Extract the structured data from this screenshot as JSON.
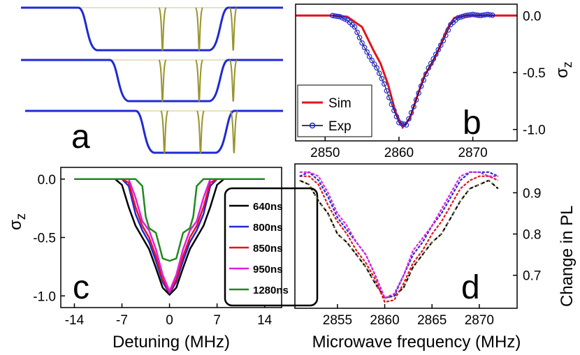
{
  "chart_data": [
    {
      "panel": "a",
      "type": "line",
      "letter": "a",
      "traces": [
        {
          "id": "a1",
          "line_color": "#1f2ad6",
          "pulse_color": "#9a9430",
          "dip_start": 22,
          "dip_end": 78,
          "pulses": [
            54,
            68,
            81
          ]
        },
        {
          "id": "a2",
          "line_color": "#1f2ad6",
          "pulse_color": "#9a9430",
          "dip_start": 34,
          "dip_end": 78,
          "pulses": [
            54,
            68,
            81
          ]
        },
        {
          "id": "a3",
          "line_color": "#1f2ad6",
          "pulse_color": "#9a9430",
          "dip_start": 43,
          "dip_end": 80,
          "pulses": [
            54,
            68,
            81
          ]
        }
      ]
    },
    {
      "panel": "b",
      "type": "line",
      "letter": "b",
      "ylabel": "σ",
      "ylabel_sub": "z",
      "xlim": [
        2846,
        2876
      ],
      "ylim": [
        -1.1,
        0.1
      ],
      "xticks": [
        "2850",
        "2860",
        "2870"
      ],
      "yticks": [
        "0.0",
        "-0.5",
        "-1.0"
      ],
      "series": [
        {
          "name": "Sim",
          "color": "#e3141b",
          "x": [
            2846,
            2851,
            2853,
            2855,
            2856.5,
            2857.5,
            2858.5,
            2859.5,
            2860.5,
            2861.5,
            2862.5,
            2863.5,
            2864.5,
            2865.5,
            2866.5,
            2867.5,
            2869,
            2871,
            2876
          ],
          "y": [
            0,
            0,
            -0.01,
            -0.1,
            -0.3,
            -0.42,
            -0.6,
            -0.84,
            -0.98,
            -0.9,
            -0.7,
            -0.52,
            -0.42,
            -0.28,
            -0.12,
            -0.02,
            0,
            0,
            0
          ]
        },
        {
          "name": "Exp",
          "color": "#1f2ad6",
          "x": [
            2851,
            2852,
            2853,
            2854,
            2855,
            2856,
            2857,
            2858,
            2859,
            2860,
            2861,
            2862,
            2863,
            2864,
            2865,
            2866,
            2867,
            2868,
            2869,
            2870,
            2871,
            2872,
            2873
          ],
          "y": [
            0,
            -0.01,
            -0.04,
            -0.1,
            -0.24,
            -0.36,
            -0.46,
            -0.6,
            -0.78,
            -0.94,
            -0.96,
            -0.8,
            -0.62,
            -0.46,
            -0.34,
            -0.22,
            -0.08,
            -0.02,
            0,
            0.01,
            0,
            0.01,
            0
          ]
        }
      ]
    },
    {
      "panel": "c",
      "type": "line",
      "letter": "c",
      "xlabel": "Detuning (MHz)",
      "ylabel": "σ",
      "ylabel_sub": "z",
      "xlim": [
        -16,
        16.5
      ],
      "ylim": [
        -1.1,
        0.1
      ],
      "xticks": [
        "-14",
        "-7",
        "0",
        "7",
        "14"
      ],
      "yticks": [
        "0.0",
        "-0.5",
        "-1.0"
      ],
      "series": [
        {
          "name": "640ns",
          "color": "#000000",
          "x": [
            -14,
            -8,
            -7,
            -6,
            -5,
            -4,
            -3,
            -2,
            -1,
            0,
            1,
            2,
            3,
            4,
            5,
            6,
            7,
            8,
            14
          ],
          "y": [
            0,
            0,
            -0.05,
            -0.24,
            -0.4,
            -0.5,
            -0.6,
            -0.76,
            -0.93,
            -0.99,
            -0.93,
            -0.76,
            -0.6,
            -0.5,
            -0.4,
            -0.24,
            -0.05,
            0,
            0
          ]
        },
        {
          "name": "800ns",
          "color": "#1f2ad6",
          "x": [
            -14,
            -7,
            -6,
            -5,
            -4,
            -3,
            -2,
            -1,
            0,
            1,
            2,
            3,
            4,
            5,
            6,
            7,
            14
          ],
          "y": [
            0,
            0,
            -0.06,
            -0.3,
            -0.44,
            -0.54,
            -0.7,
            -0.88,
            -0.98,
            -0.88,
            -0.7,
            -0.54,
            -0.44,
            -0.3,
            -0.06,
            0,
            0
          ]
        },
        {
          "name": "850ns",
          "color": "#e3141b",
          "x": [
            -14,
            -7,
            -6,
            -5,
            -4,
            -3,
            -2,
            -1,
            0,
            1,
            2,
            3,
            4,
            5,
            6,
            7,
            14
          ],
          "y": [
            0,
            0,
            -0.03,
            -0.24,
            -0.4,
            -0.5,
            -0.66,
            -0.86,
            -0.97,
            -0.86,
            -0.66,
            -0.5,
            -0.4,
            -0.24,
            -0.03,
            0,
            0
          ]
        },
        {
          "name": "950ns",
          "color": "#e11ee0",
          "x": [
            -14,
            -6,
            -5,
            -4,
            -3,
            -2,
            -1,
            0,
            1,
            2,
            3,
            4,
            5,
            6,
            14
          ],
          "y": [
            0,
            0,
            -0.16,
            -0.36,
            -0.44,
            -0.6,
            -0.82,
            -0.96,
            -0.82,
            -0.6,
            -0.44,
            -0.36,
            -0.16,
            0,
            0
          ]
        },
        {
          "name": "1280ns",
          "color": "#1e8a1e",
          "x": [
            -14,
            -5,
            -4,
            -3.5,
            -3,
            -2,
            -1,
            0,
            1,
            2,
            3,
            3.5,
            4,
            5,
            14
          ],
          "y": [
            0,
            0,
            -0.06,
            -0.32,
            -0.42,
            -0.46,
            -0.68,
            -0.7,
            -0.68,
            -0.46,
            -0.42,
            -0.32,
            -0.06,
            0,
            0
          ]
        }
      ]
    },
    {
      "panel": "d",
      "type": "line",
      "letter": "d",
      "xlabel": "Microwave frequency (MHz)",
      "ylabel": "Change in PL",
      "xlim": [
        2850.5,
        2874
      ],
      "ylim": [
        0.62,
        0.97
      ],
      "xticks": [
        "2855",
        "2860",
        "2865",
        "2870"
      ],
      "yticks": [
        "0.9",
        "0.8",
        "0.7"
      ],
      "series": [
        {
          "name": "d-black",
          "color": "#000000",
          "x": [
            2851,
            2852,
            2853,
            2854,
            2855,
            2856,
            2857,
            2858,
            2859,
            2860,
            2861,
            2862,
            2863,
            2864,
            2865,
            2866,
            2867,
            2868,
            2869,
            2870,
            2871,
            2872
          ],
          "y": [
            0.93,
            0.92,
            0.88,
            0.85,
            0.8,
            0.78,
            0.75,
            0.72,
            0.68,
            0.645,
            0.65,
            0.67,
            0.72,
            0.75,
            0.78,
            0.8,
            0.84,
            0.88,
            0.91,
            0.92,
            0.93,
            0.91
          ]
        },
        {
          "name": "d-red",
          "color": "#e3141b",
          "x": [
            2851,
            2852,
            2853,
            2854,
            2855,
            2856,
            2857,
            2858,
            2859,
            2860,
            2861,
            2862,
            2863,
            2864,
            2865,
            2866,
            2867,
            2868,
            2869,
            2870,
            2871,
            2872
          ],
          "y": [
            0.94,
            0.94,
            0.92,
            0.87,
            0.83,
            0.8,
            0.76,
            0.73,
            0.69,
            0.635,
            0.64,
            0.68,
            0.73,
            0.76,
            0.8,
            0.83,
            0.87,
            0.91,
            0.93,
            0.94,
            0.94,
            0.93
          ]
        },
        {
          "name": "d-blue",
          "color": "#1f2ad6",
          "x": [
            2851,
            2852,
            2853,
            2854,
            2855,
            2856,
            2857,
            2858,
            2859,
            2860,
            2861,
            2862,
            2863,
            2864,
            2865,
            2866,
            2867,
            2868,
            2869,
            2870,
            2871,
            2872
          ],
          "y": [
            0.94,
            0.95,
            0.93,
            0.89,
            0.84,
            0.81,
            0.78,
            0.75,
            0.7,
            0.645,
            0.65,
            0.7,
            0.75,
            0.78,
            0.82,
            0.85,
            0.89,
            0.93,
            0.95,
            0.95,
            0.95,
            0.94
          ]
        },
        {
          "name": "d-magenta",
          "color": "#e11ee0",
          "x": [
            2851,
            2852,
            2853,
            2854,
            2855,
            2856,
            2857,
            2858,
            2859,
            2860,
            2861,
            2862,
            2863,
            2864,
            2865,
            2866,
            2867,
            2868,
            2869,
            2870,
            2871,
            2872
          ],
          "y": [
            0.95,
            0.95,
            0.94,
            0.9,
            0.85,
            0.82,
            0.78,
            0.75,
            0.7,
            0.645,
            0.655,
            0.7,
            0.76,
            0.79,
            0.82,
            0.86,
            0.9,
            0.94,
            0.95,
            0.95,
            0.94,
            0.94
          ]
        }
      ]
    }
  ],
  "legend_b": [
    {
      "label": "Sim",
      "color": "#e3141b"
    },
    {
      "label": "Exp",
      "color": "#1f2ad6"
    }
  ],
  "legend_c": [
    {
      "label": "640ns",
      "color": "#000000"
    },
    {
      "label": "800ns",
      "color": "#1f2ad6"
    },
    {
      "label": "850ns",
      "color": "#e3141b"
    },
    {
      "label": "950ns",
      "color": "#e11ee0"
    },
    {
      "label": "1280ns",
      "color": "#1e8a1e"
    }
  ]
}
